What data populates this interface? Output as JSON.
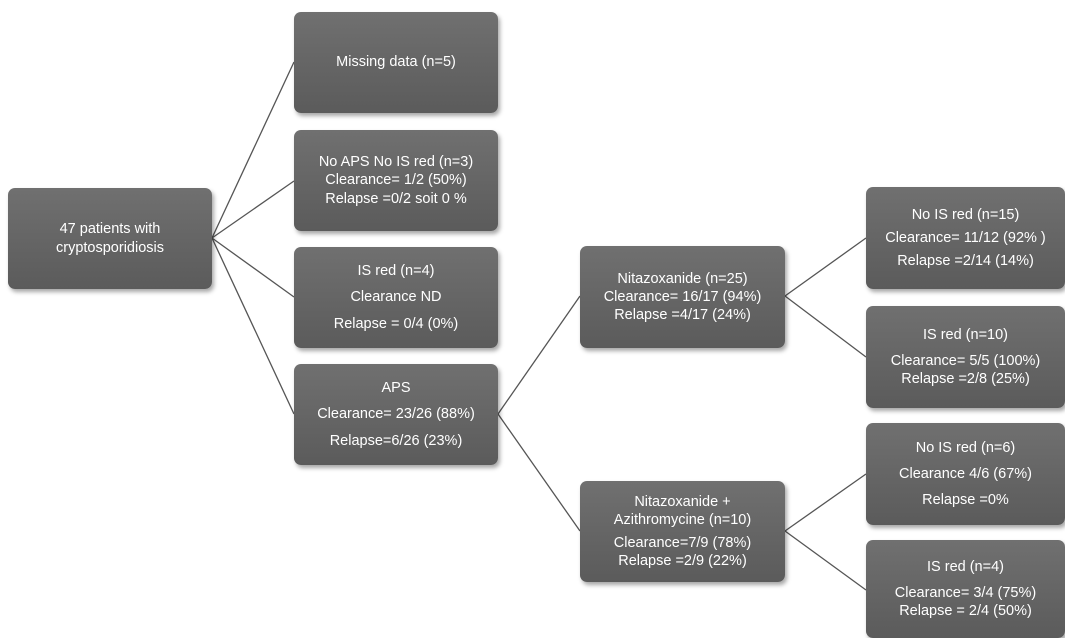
{
  "diagram": {
    "root": {
      "lines": [
        "47 patients with",
        "cryptosporidiosis"
      ]
    },
    "missing": {
      "lines": [
        "Missing data (n=5)"
      ]
    },
    "noaps": {
      "lines": [
        "No APS No IS red (n=3)",
        "Clearance= 1/2 (50%)",
        "Relapse =0/2 soit 0 %"
      ]
    },
    "isred4": {
      "lines": [
        "IS red (n=4)",
        "Clearance ND",
        "Relapse = 0/4 (0%)"
      ]
    },
    "aps": {
      "lines": [
        "APS",
        "Clearance= 23/26 (88%)",
        "Relapse=6/26 (23%)"
      ]
    },
    "nitaz": {
      "lines": [
        "Nitazoxanide (n=25)",
        "Clearance= 16/17 (94%)",
        "Relapse =4/17 (24%)"
      ]
    },
    "nitazazi": {
      "lines": [
        "Nitazoxanide +",
        "Azithromycine (n=10)",
        "Clearance=7/9 (78%)",
        "Relapse =2/9 (22%)"
      ]
    },
    "nitaz_noisred": {
      "lines": [
        "No IS red (n=15)",
        "Clearance= 11/12 (92% )",
        "Relapse =2/14 (14%)"
      ]
    },
    "nitaz_isred": {
      "lines": [
        "IS red (n=10)",
        "Clearance= 5/5 (100%)",
        "Relapse =2/8 (25%)"
      ]
    },
    "azi_noisred": {
      "lines": [
        "No IS red (n=6)",
        "Clearance 4/6 (67%)",
        "Relapse =0%"
      ]
    },
    "azi_isred": {
      "lines": [
        "IS red (n=4)",
        "Clearance= 3/4 (75%)",
        "Relapse = 2/4 (50%)"
      ]
    }
  },
  "colors": {
    "box": "#646464",
    "text": "#ffffff",
    "connector": "#555555"
  }
}
